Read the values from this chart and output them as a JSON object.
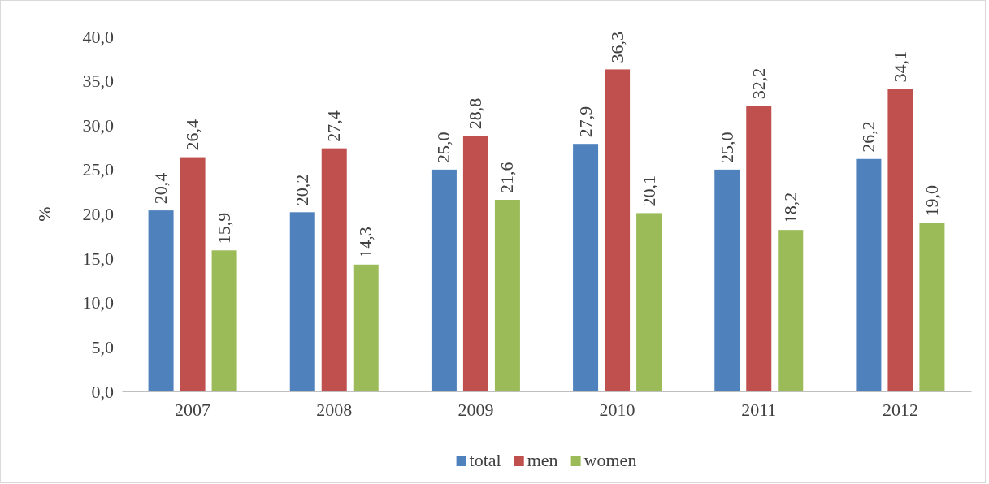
{
  "chart_data": {
    "type": "bar",
    "ylabel": "%",
    "categories": [
      "2007",
      "2008",
      "2009",
      "2010",
      "2011",
      "2012"
    ],
    "series": [
      {
        "name": "total",
        "color": "#4f81bd",
        "values": [
          20.4,
          20.2,
          25.0,
          27.9,
          25.0,
          26.2
        ],
        "value_labels": [
          "20,4",
          "20,2",
          "25,0",
          "27,9",
          "25,0",
          "26,2"
        ]
      },
      {
        "name": "men",
        "color": "#c0504d",
        "values": [
          26.4,
          27.4,
          28.8,
          36.3,
          32.2,
          34.1
        ],
        "value_labels": [
          "26,4",
          "27,4",
          "28,8",
          "36,3",
          "32,2",
          "34,1"
        ]
      },
      {
        "name": "women",
        "color": "#9bbb59",
        "values": [
          15.9,
          14.3,
          21.6,
          20.1,
          18.2,
          19.0
        ],
        "value_labels": [
          "15,9",
          "14,3",
          "21,6",
          "20,1",
          "18,2",
          "19,0"
        ]
      }
    ],
    "ylim": [
      0,
      40
    ],
    "yticks": [
      {
        "value": 0,
        "label": "0,0"
      },
      {
        "value": 5,
        "label": "5,0"
      },
      {
        "value": 10,
        "label": "10,0"
      },
      {
        "value": 15,
        "label": "15,0"
      },
      {
        "value": 20,
        "label": "20,0"
      },
      {
        "value": 25,
        "label": "25,0"
      },
      {
        "value": 30,
        "label": "30,0"
      },
      {
        "value": 35,
        "label": "35,0"
      },
      {
        "value": 40,
        "label": "40,0"
      }
    ],
    "grid": false,
    "legend": "bottom"
  }
}
